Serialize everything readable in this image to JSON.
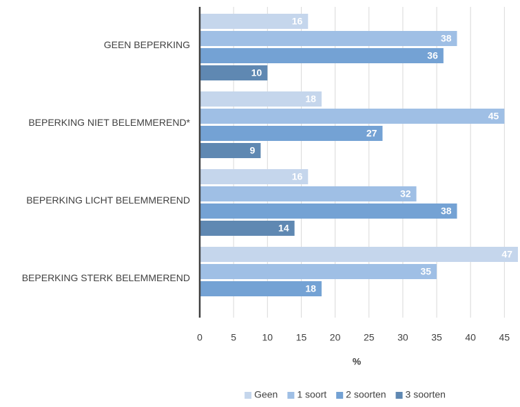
{
  "chart_data": {
    "type": "hbar",
    "categories": [
      "GEEN BEPERKING",
      "BEPERKING NIET BELEMMEREND*",
      "BEPERKING LICHT BELEMMEREND",
      "BEPERKING STERK BELEMMEREND"
    ],
    "series": [
      {
        "name": "Geen",
        "color": "#c5d6ec",
        "values": [
          16,
          18,
          16,
          47
        ]
      },
      {
        "name": "1 soort",
        "color": "#9fbfe5",
        "values": [
          38,
          45,
          32,
          35
        ]
      },
      {
        "name": "2 soorten",
        "color": "#74a2d4",
        "values": [
          36,
          27,
          38,
          18
        ]
      },
      {
        "name": "3 soorten",
        "color": "#5f88b2",
        "values": [
          10,
          9,
          14,
          null
        ]
      }
    ],
    "x_label": "%",
    "xlim": [
      0,
      47
    ],
    "xticks": [
      0,
      5,
      10,
      15,
      20,
      25,
      30,
      35,
      40,
      45
    ],
    "grid": true,
    "legend": "bottom"
  }
}
